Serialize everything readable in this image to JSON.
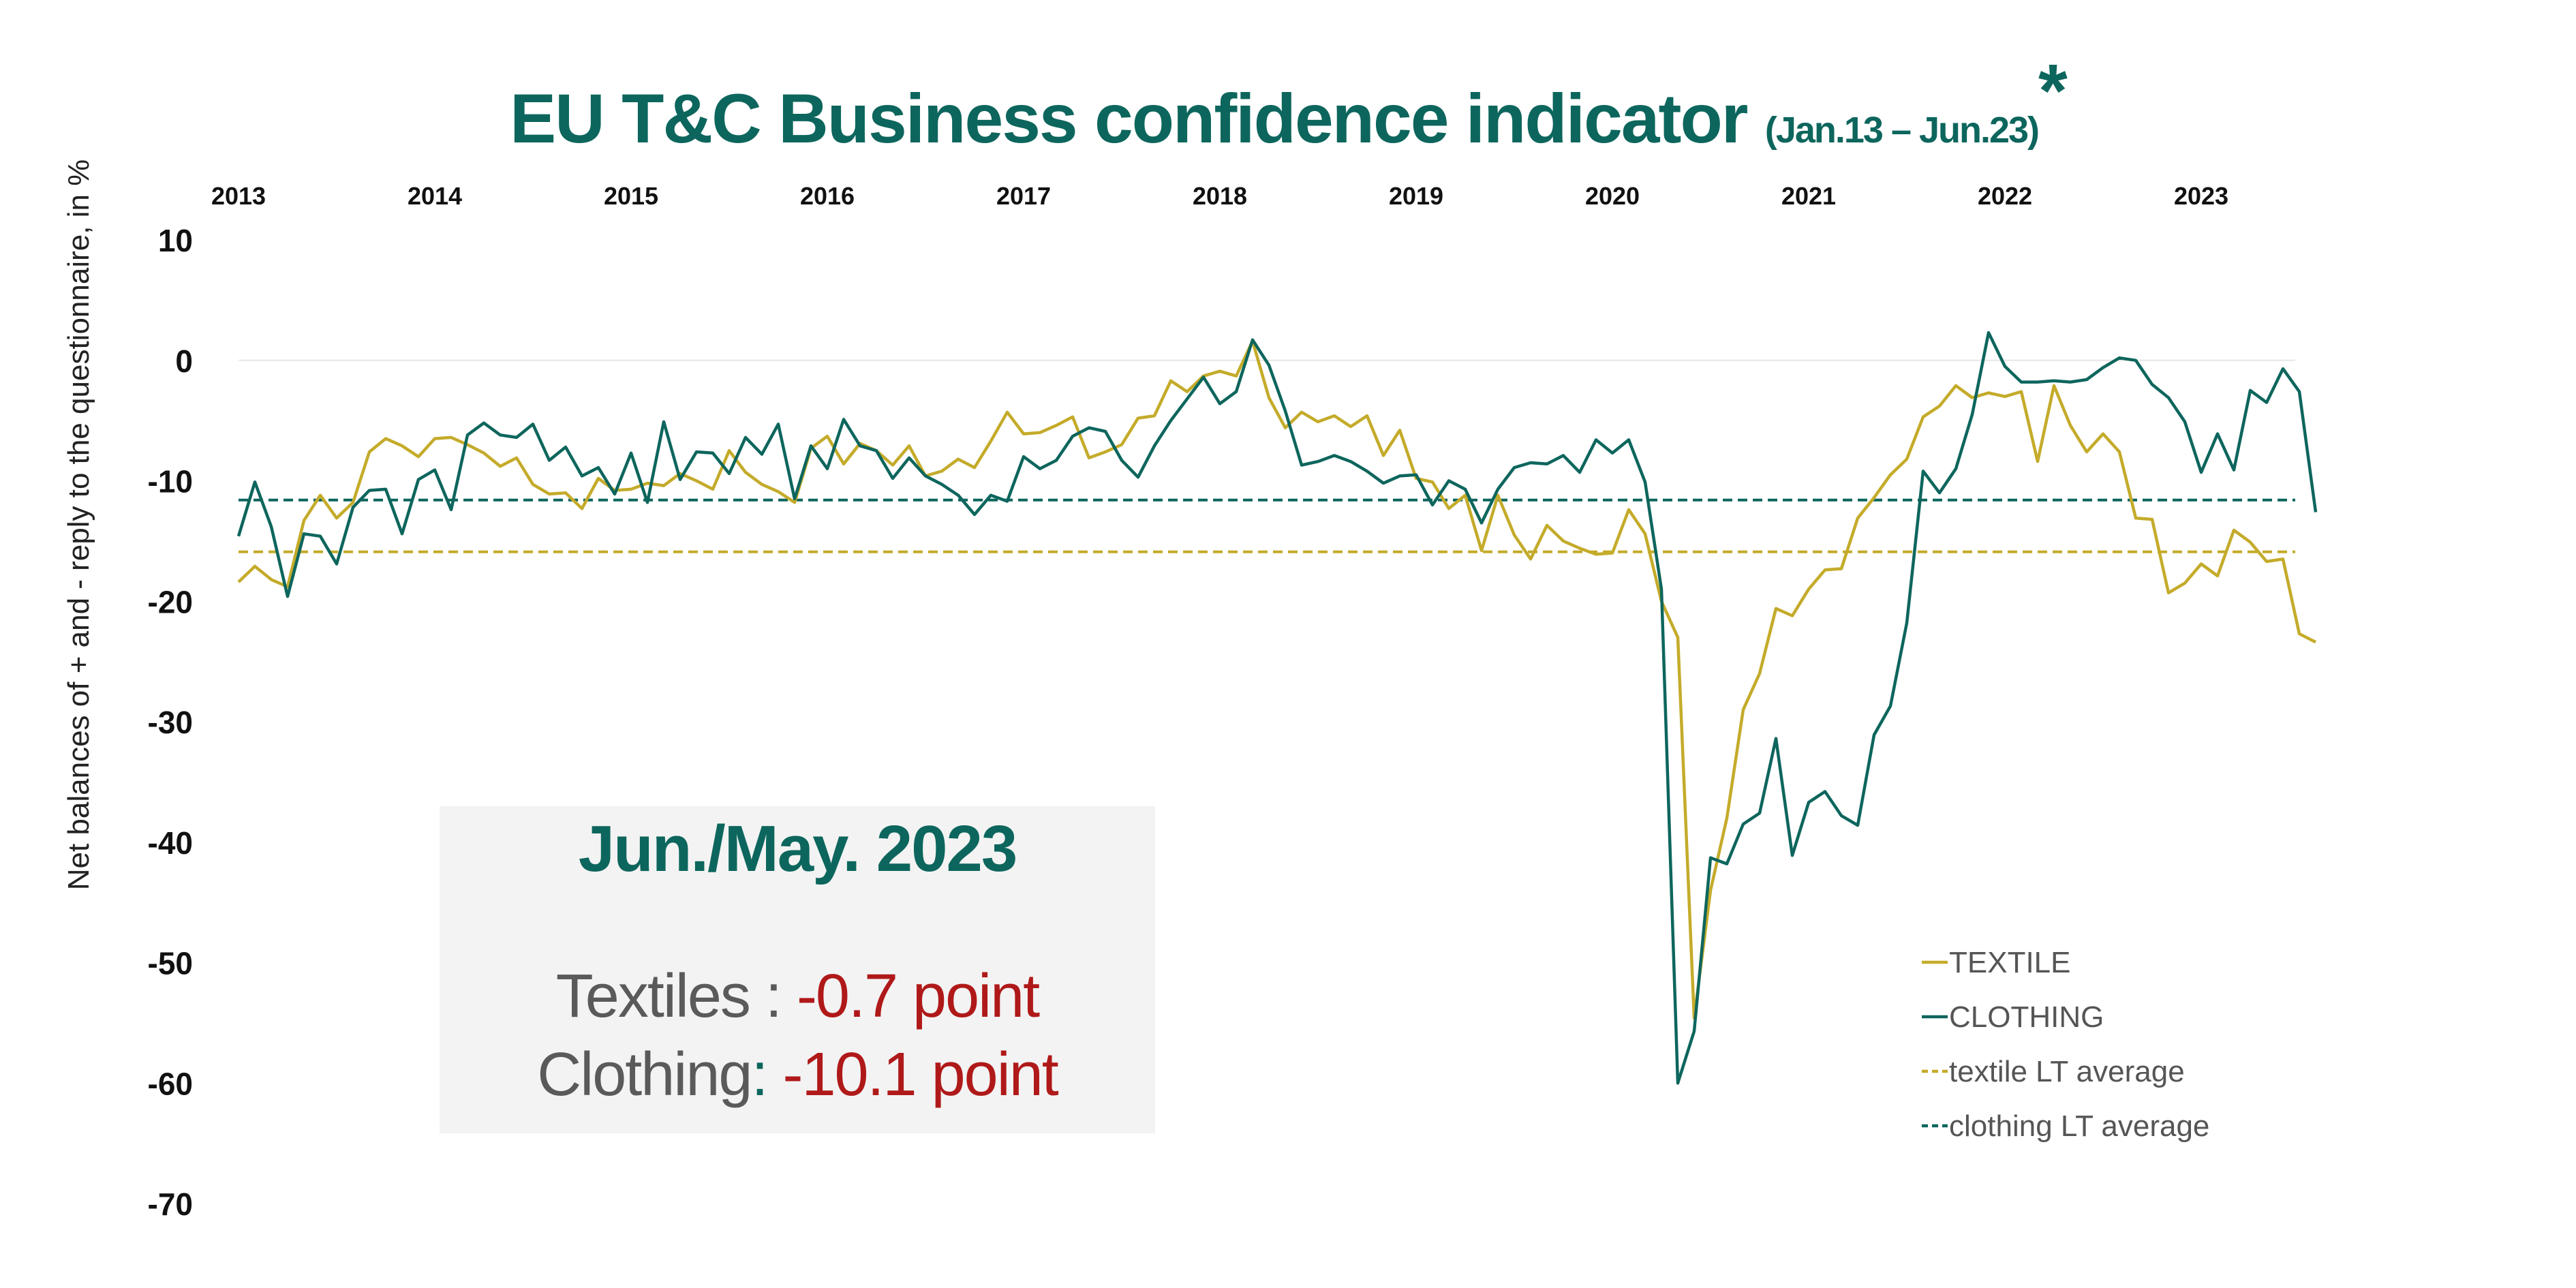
{
  "header": {
    "title_main": "EU T&C Business confidence indicator",
    "title_sub": "(Jan.13 – Jun.23)",
    "title_mark": "*"
  },
  "infobox": {
    "heading": "Jun./May. 2023",
    "rows": [
      {
        "label": "Textiles :",
        "value": "-0.7  point"
      },
      {
        "label": "Clothing",
        "colon": ":",
        "value": "-10.1  point"
      }
    ]
  },
  "colors": {
    "textile": "#c4ab2a",
    "clothing": "#0d665d",
    "grid": "#e6e6e6",
    "box_bg": "#f3f3f3",
    "value_red": "#b01919"
  },
  "chart_data": {
    "type": "line",
    "ylabel": "Net balances of + and - reply to the questionnaire, in %",
    "xlabel": "",
    "ylim": [
      -70,
      10
    ],
    "yticks": [
      10,
      0,
      -10,
      -20,
      -30,
      -40,
      -50,
      -60,
      -70
    ],
    "x_ticks_position": "top",
    "x_tick_labels": [
      "2013",
      "2014",
      "2015",
      "2016",
      "2017",
      "2018",
      "2019",
      "2020",
      "2021",
      "2022",
      "2023"
    ],
    "x_start": "2013-01",
    "x_end": "2023-06",
    "legend_position": "bottom-right",
    "legend": [
      "TEXTILE",
      "CLOTHING",
      "textile LT average",
      "clothing LT average"
    ],
    "series": [
      {
        "name": "TEXTILE",
        "values": [
          -18.4,
          -17.1,
          -18.2,
          -18.8,
          -13.3,
          -11.2,
          -13.1,
          -11.8,
          -7.6,
          -6.5,
          -7.1,
          -8.0,
          -6.5,
          -6.4,
          -7.0,
          -7.7,
          -8.8,
          -8.1,
          -10.3,
          -11.1,
          -11.0,
          -12.3,
          -9.8,
          -10.8,
          -10.7,
          -10.2,
          -10.4,
          -9.4,
          -10.0,
          -10.7,
          -7.5,
          -9.3,
          -10.3,
          -10.9,
          -11.8,
          -7.3,
          -6.3,
          -8.6,
          -6.9,
          -7.5,
          -8.7,
          -7.1,
          -9.6,
          -9.2,
          -8.2,
          -8.9,
          -6.7,
          -4.3,
          -6.1,
          -6.0,
          -5.4,
          -4.7,
          -8.1,
          -7.6,
          -7.0,
          -4.8,
          -4.6,
          -1.7,
          -2.6,
          -1.3,
          -0.9,
          -1.3,
          1.6,
          -3.1,
          -5.6,
          -4.3,
          -5.1,
          -4.6,
          -5.5,
          -4.6,
          -7.9,
          -5.8,
          -9.8,
          -10.1,
          -12.3,
          -11.2,
          -15.8,
          -11.2,
          -14.5,
          -16.5,
          -13.7,
          -15.0,
          -15.6,
          -16.1,
          -16.0,
          -12.4,
          -14.4,
          -20.0,
          -23.0,
          -54.6,
          -44.0,
          -38.0,
          -29.0,
          -26.0,
          -20.6,
          -21.2,
          -19.0,
          -17.4,
          -17.3,
          -13.1,
          -11.4,
          -9.5,
          -8.2,
          -4.7,
          -3.8,
          -2.1,
          -3.1,
          -2.7,
          -3.0,
          -2.6,
          -8.4,
          -2.1,
          -5.4,
          -7.6,
          -6.1,
          -7.6,
          -13.1,
          -13.2,
          -19.3,
          -18.5,
          -16.9,
          -17.9,
          -14.1,
          -15.1,
          -16.7,
          -16.5,
          -22.7,
          -23.4
        ],
        "color": "#c4ab2a"
      },
      {
        "name": "CLOTHING",
        "values": [
          -14.6,
          -10.1,
          -13.8,
          -19.6,
          -14.4,
          -14.6,
          -16.9,
          -12.2,
          -10.8,
          -10.7,
          -14.4,
          -9.9,
          -9.1,
          -12.4,
          -6.2,
          -5.2,
          -6.2,
          -6.4,
          -5.3,
          -8.3,
          -7.2,
          -9.6,
          -8.9,
          -11.1,
          -7.7,
          -11.8,
          -5.1,
          -9.9,
          -7.6,
          -7.7,
          -9.4,
          -6.4,
          -7.8,
          -5.3,
          -11.5,
          -7.1,
          -9.0,
          -4.9,
          -7.1,
          -7.5,
          -9.8,
          -8.1,
          -9.6,
          -10.3,
          -11.2,
          -12.8,
          -11.2,
          -11.7,
          -8.0,
          -9.0,
          -8.3,
          -6.3,
          -5.6,
          -5.9,
          -8.3,
          -9.7,
          -7.1,
          -5.0,
          -3.2,
          -1.4,
          -3.6,
          -2.6,
          1.7,
          -0.4,
          -4.2,
          -8.7,
          -8.4,
          -7.9,
          -8.4,
          -9.2,
          -10.2,
          -9.6,
          -9.5,
          -12.0,
          -10.0,
          -10.7,
          -13.5,
          -10.7,
          -8.9,
          -8.5,
          -8.6,
          -7.9,
          -9.3,
          -6.6,
          -7.7,
          -6.6,
          -10.1,
          -19.0,
          -60.0,
          -55.7,
          -41.3,
          -41.8,
          -38.5,
          -37.6,
          -31.4,
          -41.1,
          -36.7,
          -35.8,
          -37.8,
          -38.6,
          -31.1,
          -28.7,
          -21.8,
          -9.2,
          -11.0,
          -9.0,
          -4.5,
          2.3,
          -0.5,
          -1.8,
          -1.8,
          -1.7,
          -1.8,
          -1.6,
          -0.6,
          0.2,
          0.0,
          -2.0,
          -3.1,
          -5.1,
          -9.3,
          -6.1,
          -9.1,
          -2.5,
          -3.5,
          -0.7,
          -2.6,
          -12.6
        ],
        "color": "#0d665d"
      },
      {
        "name": "textile LT average",
        "values": [
          -15.9
        ],
        "color": "#c4ab2a",
        "style": "dashed"
      },
      {
        "name": "clothing LT average",
        "values": [
          -11.6
        ],
        "color": "#0d665d",
        "style": "dashed"
      }
    ]
  }
}
